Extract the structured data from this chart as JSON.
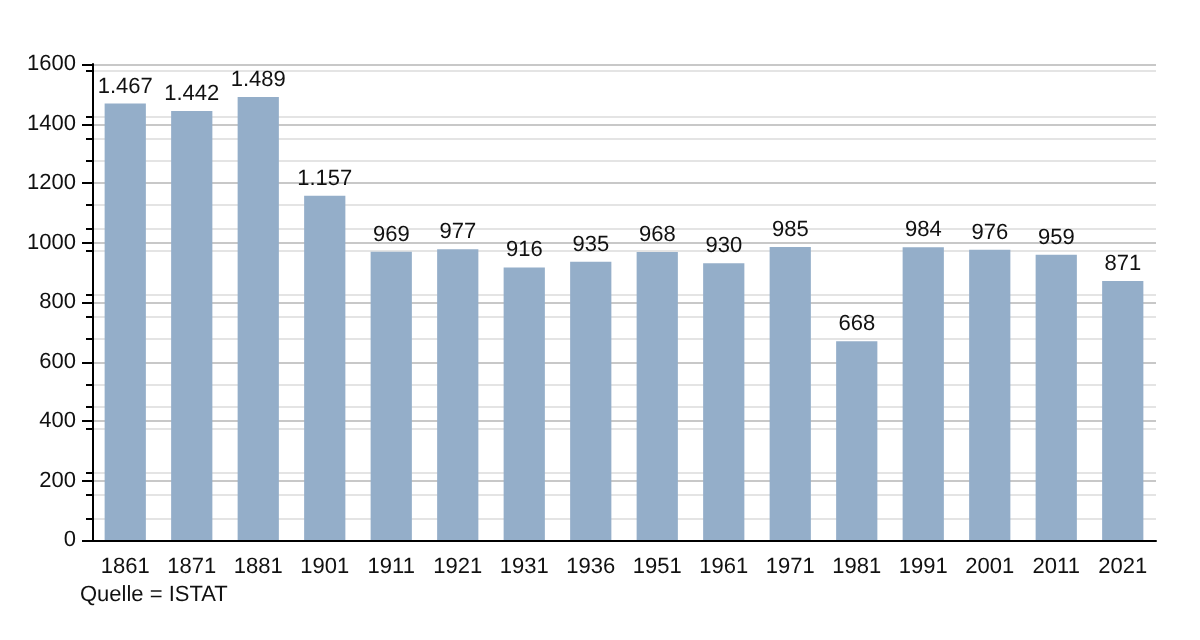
{
  "chart_data": {
    "type": "bar",
    "categories": [
      "1861",
      "1871",
      "1881",
      "1901",
      "1911",
      "1921",
      "1931",
      "1936",
      "1951",
      "1961",
      "1971",
      "1981",
      "1991",
      "2001",
      "2011",
      "2021"
    ],
    "values": [
      1467,
      1442,
      1489,
      1157,
      969,
      977,
      916,
      935,
      968,
      930,
      985,
      668,
      984,
      976,
      959,
      871
    ],
    "value_labels": [
      "1.467",
      "1.442",
      "1.489",
      "1.157",
      "969",
      "977",
      "916",
      "935",
      "968",
      "930",
      "985",
      "668",
      "984",
      "976",
      "959",
      "871"
    ],
    "color": "#94aec9",
    "ylim": [
      0,
      1600
    ],
    "yticks": [
      0,
      200,
      400,
      600,
      800,
      1000,
      1200,
      1400,
      1600
    ],
    "grid": "y",
    "annotations": [
      "Quelle = ISTAT"
    ]
  }
}
